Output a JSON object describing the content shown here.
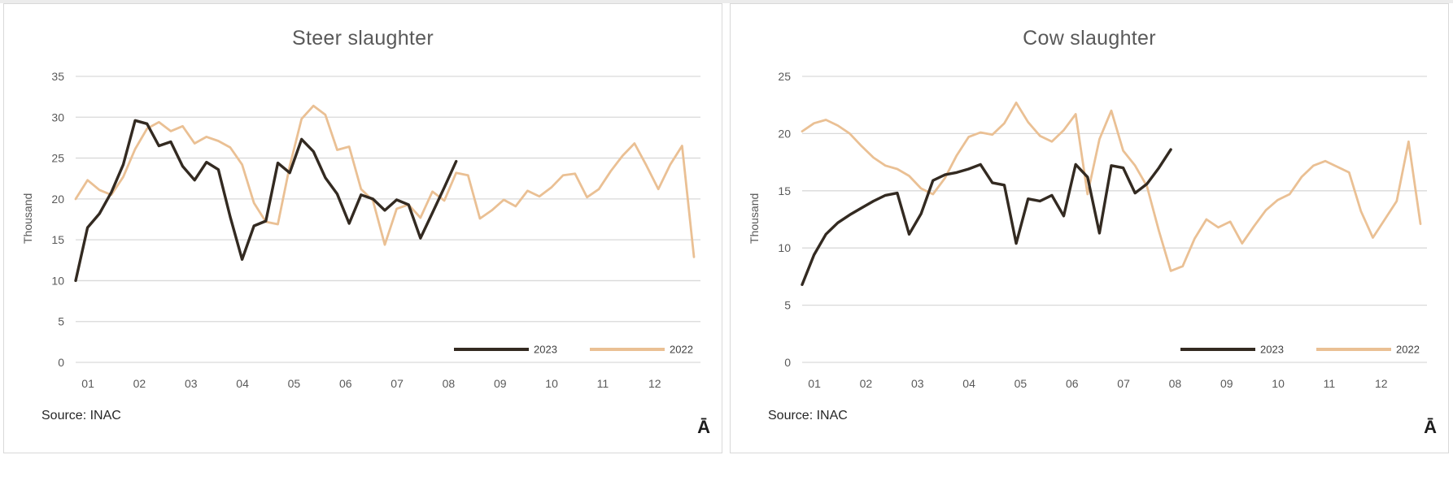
{
  "page": {
    "background": "#ffffff",
    "panel_border_color": "#d9d9d9"
  },
  "colors": {
    "grid": "#d9d9d9",
    "axis_text": "#595959",
    "title_text": "#595959",
    "series_2023": "#332a21",
    "series_2022": "#eac094",
    "legend_text": "#404040",
    "source_text": "#262626"
  },
  "chart_data": [
    {
      "type": "line",
      "title": "Steer slaughter",
      "ylabel": "Thousand",
      "ylim": [
        0,
        35
      ],
      "y_ticks": [
        35,
        30,
        25,
        20,
        15,
        10,
        5,
        0
      ],
      "x_tick_labels": [
        "01",
        "02",
        "03",
        "04",
        "05",
        "06",
        "07",
        "08",
        "09",
        "10",
        "11",
        "12"
      ],
      "total_points": 53,
      "grid": true,
      "legend_position": "inside-bottom-right",
      "source_note": "Source: INAC",
      "footnote_glyph": "Ā",
      "series": [
        {
          "name": "2023",
          "color": "#332a21",
          "width": 3.4,
          "values": [
            10.0,
            16.5,
            18.2,
            20.8,
            24.2,
            29.6,
            29.2,
            26.5,
            27.0,
            24.0,
            22.3,
            24.5,
            23.6,
            17.8,
            12.6,
            16.7,
            17.3,
            24.4,
            23.2,
            27.3,
            25.8,
            22.6,
            20.6,
            17.0,
            20.5,
            20.0,
            18.6,
            19.9,
            19.3,
            15.2,
            18.3,
            21.4,
            24.6
          ]
        },
        {
          "name": "2022",
          "color": "#eac094",
          "width": 2.8,
          "values": [
            20.0,
            22.3,
            21.1,
            20.5,
            22.7,
            26.1,
            28.6,
            29.4,
            28.3,
            28.9,
            26.8,
            27.6,
            27.1,
            26.3,
            24.2,
            19.5,
            17.2,
            16.9,
            24.0,
            29.8,
            31.4,
            30.3,
            26.0,
            26.4,
            21.2,
            19.8,
            14.4,
            18.8,
            19.3,
            17.7,
            20.9,
            19.8,
            23.2,
            22.9,
            17.6,
            18.6,
            19.9,
            19.1,
            21.0,
            20.3,
            21.4,
            22.9,
            23.1,
            20.2,
            21.2,
            23.4,
            25.3,
            26.8,
            24.1,
            21.2,
            24.2,
            26.5,
            12.9
          ]
        }
      ]
    },
    {
      "type": "line",
      "title": "Cow slaughter",
      "ylabel": "Thousand",
      "ylim": [
        0,
        25
      ],
      "y_ticks": [
        25,
        20,
        15,
        10,
        5,
        0
      ],
      "x_tick_labels": [
        "01",
        "02",
        "03",
        "04",
        "05",
        "06",
        "07",
        "08",
        "09",
        "10",
        "11",
        "12"
      ],
      "total_points": 53,
      "grid": true,
      "legend_position": "inside-bottom-right",
      "source_note": "Source: INAC",
      "footnote_glyph": "Ā",
      "series": [
        {
          "name": "2023",
          "color": "#332a21",
          "width": 3.4,
          "values": [
            6.8,
            9.4,
            11.2,
            12.2,
            12.9,
            13.5,
            14.1,
            14.6,
            14.8,
            11.2,
            13.0,
            15.9,
            16.4,
            16.6,
            16.9,
            17.3,
            15.7,
            15.5,
            10.4,
            14.3,
            14.1,
            14.6,
            12.8,
            17.3,
            16.2,
            11.3,
            17.2,
            17.0,
            14.8,
            15.6,
            17.0,
            18.6
          ]
        },
        {
          "name": "2022",
          "color": "#eac094",
          "width": 2.8,
          "values": [
            20.2,
            20.9,
            21.2,
            20.7,
            20.0,
            18.9,
            17.9,
            17.2,
            16.9,
            16.3,
            15.2,
            14.7,
            16.1,
            18.1,
            19.7,
            20.1,
            19.9,
            20.9,
            22.7,
            21.0,
            19.8,
            19.3,
            20.3,
            21.7,
            14.7,
            19.5,
            22.0,
            18.5,
            17.2,
            15.4,
            11.5,
            8.0,
            8.4,
            10.8,
            12.5,
            11.8,
            12.3,
            10.4,
            11.9,
            13.3,
            14.2,
            14.7,
            16.2,
            17.2,
            17.6,
            17.1,
            16.6,
            13.2,
            10.9,
            12.5,
            14.1,
            19.3,
            12.1
          ]
        }
      ]
    }
  ]
}
